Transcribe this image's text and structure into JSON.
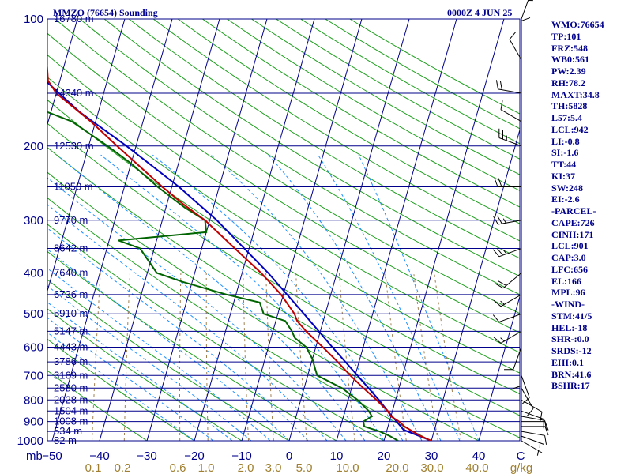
{
  "header": {
    "title": "MMZO (76654) Sounding",
    "datetime": "0000Z  4 JUN 25"
  },
  "indices": [
    "WMO:76654",
    "TP:101",
    "FRZ:548",
    "WB0:561",
    "PW:2.39",
    "RH:78.2",
    "MAXT:34.8",
    "TH:5828",
    "L57:5.4",
    "LCL:942",
    "LI:-0.8",
    "SI:-1.6",
    "TT:44",
    "KI:37",
    "SW:248",
    "EI:-2.6",
    "-PARCEL-",
    "CAPE:726",
    "CINH:171",
    "LCL:901",
    "CAP:3.0",
    "LFC:656",
    "EL:166",
    "MPL:96",
    "-WIND-",
    "STM:41/5",
    "HEL:-18",
    "SHR-:0.0",
    "SRDS:-12",
    "EHI:0.1",
    "BRN:41.6",
    "BSHR:17"
  ],
  "colors": {
    "text": "#00008b",
    "isobar": "#00008b",
    "isotherm": "#00008b",
    "dry_adiabat": "#1fa01f",
    "moist_adiabat": "#1e90ff",
    "mixing_ratio": "#a08050",
    "temperature": "#c00000",
    "dewpoint": "#006400",
    "parcel": "#0000c0",
    "wind": "#000000",
    "mixing_label": "#a08030"
  },
  "chart_data": {
    "type": "skew-t",
    "pressure_axis": {
      "unit": "mb",
      "levels": [
        100,
        200,
        300,
        400,
        500,
        600,
        700,
        800,
        900,
        1000
      ],
      "range": [
        100,
        1000
      ],
      "scale": "log"
    },
    "temperature_axis": {
      "ticks": [
        -50,
        -40,
        -30,
        -20,
        -10,
        0,
        10,
        20,
        30,
        40
      ],
      "range": [
        -50,
        50
      ]
    },
    "mixing_ratio_axis": {
      "unit": "g/kg",
      "labels": [
        "0.1",
        "0.2",
        "0.6",
        "1.0",
        "2.0",
        "3.0",
        "5.0",
        "10.0",
        "20.0",
        "30.0",
        "40.0"
      ],
      "values": [
        0.1,
        0.2,
        0.6,
        1.0,
        2.0,
        3.0,
        5.0,
        10.0,
        20.0,
        30.0,
        40.0
      ]
    },
    "height_labels": [
      {
        "p": 100,
        "label": "16780 m"
      },
      {
        "p": 150,
        "label": "14340 m"
      },
      {
        "p": 200,
        "label": "12530 m"
      },
      {
        "p": 250,
        "label": "11050 m"
      },
      {
        "p": 300,
        "label": "9770 m"
      },
      {
        "p": 350,
        "label": "8642 m"
      },
      {
        "p": 400,
        "label": "7640 m"
      },
      {
        "p": 450,
        "label": "6736 m"
      },
      {
        "p": 500,
        "label": "5910 m"
      },
      {
        "p": 550,
        "label": "5147 m"
      },
      {
        "p": 600,
        "label": "4443 m"
      },
      {
        "p": 650,
        "label": "3786 m"
      },
      {
        "p": 700,
        "label": "3169 m"
      },
      {
        "p": 750,
        "label": "2580 m"
      },
      {
        "p": 800,
        "label": "2028 m"
      },
      {
        "p": 850,
        "label": "1504 m"
      },
      {
        "p": 900,
        "label": "1008 m"
      },
      {
        "p": 950,
        "label": "534 m"
      },
      {
        "p": 1000,
        "label": "82 m"
      }
    ],
    "temperature_profile": [
      {
        "p": 1000,
        "t": 30.0
      },
      {
        "p": 975,
        "t": 27.5
      },
      {
        "p": 950,
        "t": 25.5
      },
      {
        "p": 925,
        "t": 23.5
      },
      {
        "p": 900,
        "t": 22.0
      },
      {
        "p": 875,
        "t": 20.0
      },
      {
        "p": 850,
        "t": 19.0
      },
      {
        "p": 800,
        "t": 16.0
      },
      {
        "p": 750,
        "t": 12.5
      },
      {
        "p": 700,
        "t": 9.0
      },
      {
        "p": 650,
        "t": 5.5
      },
      {
        "p": 600,
        "t": 1.5
      },
      {
        "p": 550,
        "t": -3.0
      },
      {
        "p": 520,
        "t": -5.5
      },
      {
        "p": 500,
        "t": -6.5
      },
      {
        "p": 450,
        "t": -10.5
      },
      {
        "p": 400,
        "t": -16.0
      },
      {
        "p": 350,
        "t": -23.0
      },
      {
        "p": 300,
        "t": -31.0
      },
      {
        "p": 275,
        "t": -36.5
      },
      {
        "p": 250,
        "t": -42.0
      },
      {
        "p": 200,
        "t": -54.0
      },
      {
        "p": 175,
        "t": -61.0
      },
      {
        "p": 150,
        "t": -70.0
      },
      {
        "p": 140,
        "t": -72.5
      },
      {
        "p": 130,
        "t": -73.5
      },
      {
        "p": 115,
        "t": -76.0
      },
      {
        "p": 100,
        "t": -78.0
      }
    ],
    "dewpoint_profile": [
      {
        "p": 1000,
        "td": 23.0
      },
      {
        "p": 975,
        "td": 21.0
      },
      {
        "p": 950,
        "td": 18.5
      },
      {
        "p": 925,
        "td": 15.0
      },
      {
        "p": 900,
        "td": 14.5
      },
      {
        "p": 875,
        "td": 16.0
      },
      {
        "p": 850,
        "td": 15.0
      },
      {
        "p": 800,
        "td": 12.0
      },
      {
        "p": 750,
        "td": 8.0
      },
      {
        "p": 700,
        "td": 2.0
      },
      {
        "p": 670,
        "td": 1.0
      },
      {
        "p": 640,
        "td": 0.0
      },
      {
        "p": 600,
        "td": -2.0
      },
      {
        "p": 570,
        "td": -5.0
      },
      {
        "p": 550,
        "td": -6.0
      },
      {
        "p": 520,
        "td": -8.0
      },
      {
        "p": 500,
        "td": -13.0
      },
      {
        "p": 470,
        "td": -14.5
      },
      {
        "p": 450,
        "td": -22.0
      },
      {
        "p": 420,
        "td": -32.0
      },
      {
        "p": 400,
        "td": -38.0
      },
      {
        "p": 350,
        "td": -43.0
      },
      {
        "p": 335,
        "td": -48.0
      },
      {
        "p": 320,
        "td": -30.0
      },
      {
        "p": 300,
        "td": -31.0
      },
      {
        "p": 280,
        "td": -36.0
      },
      {
        "p": 250,
        "td": -43.0
      },
      {
        "p": 220,
        "td": -50.0
      },
      {
        "p": 200,
        "td": -56.0
      },
      {
        "p": 175,
        "td": -65.0
      },
      {
        "p": 160,
        "td": -75.0
      },
      {
        "p": 150,
        "td": -80.0
      },
      {
        "p": 130,
        "td": -85.0
      },
      {
        "p": 115,
        "td": -90.0
      },
      {
        "p": 100,
        "td": -95.0
      }
    ],
    "parcel_profile": [
      {
        "p": 1000,
        "t": 30.0
      },
      {
        "p": 942,
        "t": 23.5
      },
      {
        "p": 900,
        "t": 21.5
      },
      {
        "p": 850,
        "t": 19.0
      },
      {
        "p": 800,
        "t": 16.5
      },
      {
        "p": 700,
        "t": 10.5
      },
      {
        "p": 600,
        "t": 3.5
      },
      {
        "p": 500,
        "t": -4.5
      },
      {
        "p": 400,
        "t": -14.5
      },
      {
        "p": 300,
        "t": -28.5
      },
      {
        "p": 250,
        "t": -38.5
      },
      {
        "p": 200,
        "t": -52.0
      },
      {
        "p": 166,
        "t": -64.0
      },
      {
        "p": 130,
        "t": -77.0
      },
      {
        "p": 100,
        "t": -90.0
      }
    ],
    "wind_barbs": [
      {
        "p": 1000,
        "dir": 120,
        "spd": 5
      },
      {
        "p": 975,
        "dir": 110,
        "spd": 5
      },
      {
        "p": 950,
        "dir": 100,
        "spd": 10
      },
      {
        "p": 925,
        "dir": 90,
        "spd": 10
      },
      {
        "p": 900,
        "dir": 90,
        "spd": 10
      },
      {
        "p": 875,
        "dir": 100,
        "spd": 10
      },
      {
        "p": 850,
        "dir": 110,
        "spd": 10
      },
      {
        "p": 800,
        "dir": 120,
        "spd": 10
      },
      {
        "p": 750,
        "dir": 150,
        "spd": 10
      },
      {
        "p": 700,
        "dir": 160,
        "spd": 10
      },
      {
        "p": 650,
        "dir": 180,
        "spd": 10
      },
      {
        "p": 600,
        "dir": 200,
        "spd": 10
      },
      {
        "p": 550,
        "dir": 240,
        "spd": 15
      },
      {
        "p": 500,
        "dir": 250,
        "spd": 10
      },
      {
        "p": 450,
        "dir": 240,
        "spd": 15
      },
      {
        "p": 400,
        "dir": 230,
        "spd": 20
      },
      {
        "p": 350,
        "dir": 250,
        "spd": 25
      },
      {
        "p": 300,
        "dir": 260,
        "spd": 25
      },
      {
        "p": 250,
        "dir": 270,
        "spd": 20
      },
      {
        "p": 200,
        "dir": 290,
        "spd": 25
      },
      {
        "p": 175,
        "dir": 300,
        "spd": 10
      },
      {
        "p": 150,
        "dir": 280,
        "spd": 20
      },
      {
        "p": 125,
        "dir": 330,
        "spd": 10
      },
      {
        "p": 115,
        "dir": 360,
        "spd": 10
      },
      {
        "p": 100,
        "dir": 20,
        "spd": 5
      }
    ]
  }
}
